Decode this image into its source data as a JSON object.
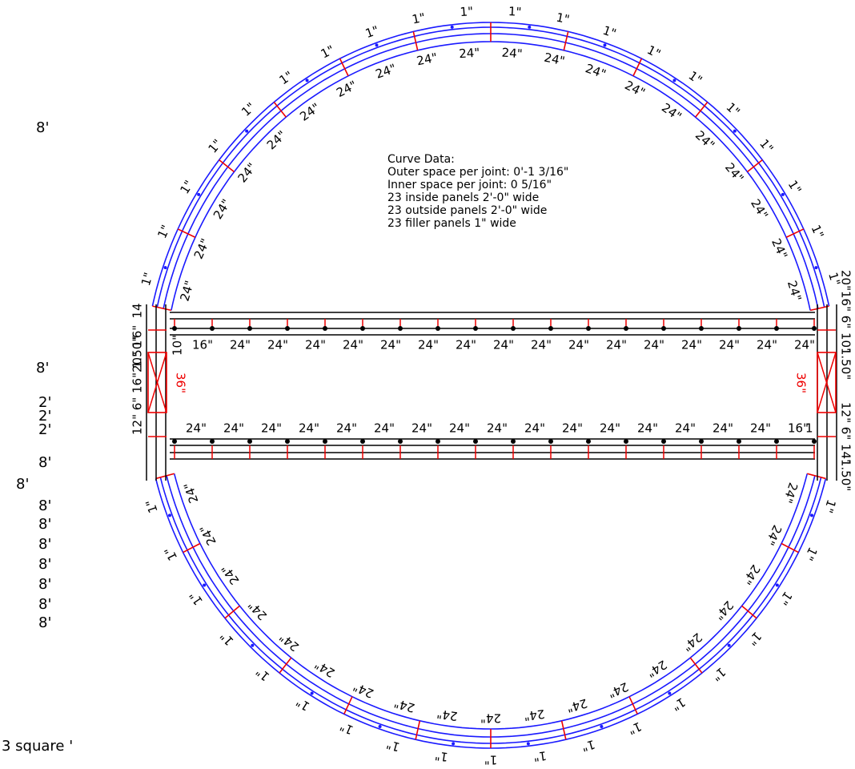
{
  "notes": {
    "title": "Curve Data:",
    "lines": [
      "Outer space per joint: 0'-1 3/16\"",
      "Inner space per joint: 0 5/16\"",
      "23 inside panels 2'-0\" wide",
      "23 outside panels 2'-0\" wide",
      "23 filler panels 1\" wide"
    ]
  },
  "left_labels": [
    "8'",
    "8'",
    "2'",
    "2'",
    "2'",
    "8'",
    "8'",
    "8'",
    "8'",
    "8'",
    "8'",
    "8'",
    "8'",
    "8'"
  ],
  "footer": "3 square '",
  "door_labels": [
    "36\"",
    "36\""
  ],
  "top_wall_labels": [
    "10\"",
    "16\"",
    "24\"",
    "24\"",
    "24\"",
    "24\"",
    "24\"",
    "24\"",
    "24\"",
    "24\"",
    "24\"",
    "24\"",
    "24\"",
    "24\"",
    "24\"",
    "24\"",
    "24\"",
    "24\""
  ],
  "bottom_wall_labels": [
    "24\"",
    "24\"",
    "24\"",
    "24\"",
    "24\"",
    "24\"",
    "24\"",
    "24\"",
    "24\"",
    "24\"",
    "24\"",
    "24\"",
    "24\"",
    "24\"",
    "24\"",
    "24\"",
    "16\"",
    "1"
  ],
  "ring": {
    "top_outer": [
      "1\"",
      "1\"",
      "1\"",
      "1\"",
      "1\"",
      "1\"",
      "1\"",
      "1\"",
      "1\"",
      "1\"",
      "1\"",
      "1\"",
      "1\"",
      "1\"",
      "1\"",
      "1\"",
      "1\"",
      "1\"",
      "1\"",
      "1\""
    ],
    "top_inner": [
      "24\"",
      "24\"",
      "24\"",
      "24\"",
      "24\"",
      "24\"",
      "24\"",
      "24\"",
      "24\"",
      "24\"",
      "24\"",
      "24\"",
      "24\"",
      "24\"",
      "24\"",
      "24\"",
      "24\"",
      "24\"",
      "24\"",
      "24\""
    ],
    "bottom_outer": [
      "1\"",
      "1\"",
      "1\"",
      "1\"",
      "1\"",
      "1\"",
      "1\"",
      "1\"",
      "1\"",
      "1\"",
      "1\"",
      "1\"",
      "1\"",
      "1\"",
      "1\"",
      "1\"",
      "1\"",
      "1\"",
      "1\""
    ],
    "bottom_inner": [
      "24\"",
      "24\"",
      "24\"",
      "24\"",
      "24\"",
      "24\"",
      "24\"",
      "24\"",
      "24\"",
      "24\"",
      "24\"",
      "24\"",
      "24\"",
      "24\"",
      "24\"",
      "24\"",
      "24\"",
      "24\"",
      "24\""
    ]
  },
  "end_labels": {
    "left_top": [
      "1.50\"",
      "6\"",
      "14"
    ],
    "left_bottom": [
      "12\"",
      "6\"",
      "16\"",
      "20\"",
      "1\""
    ],
    "right_top": [
      "20\"",
      "16\"",
      "6\"",
      "10\"",
      "1.50\""
    ],
    "right_bottom": [
      "12\"",
      "6\"",
      "14\"",
      "1.50\""
    ]
  }
}
